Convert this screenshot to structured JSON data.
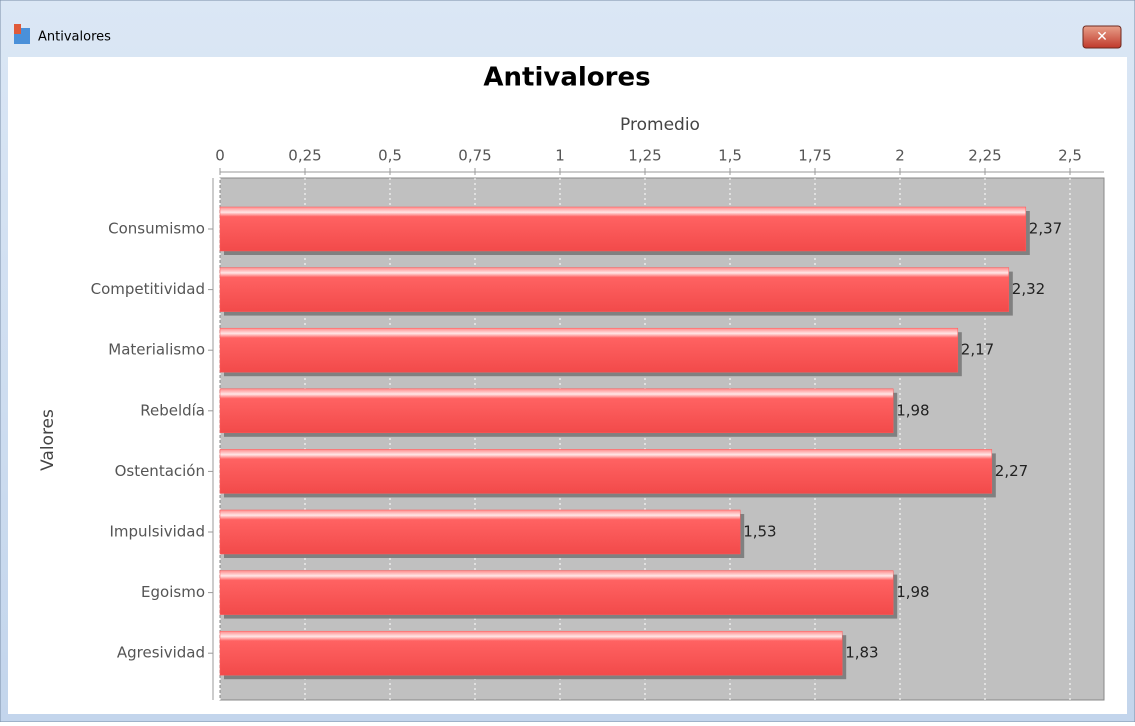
{
  "window": {
    "title": "Antivalores"
  },
  "chart_data": {
    "type": "bar",
    "orientation": "horizontal",
    "title": "Antivalores",
    "x_label": "Promedio",
    "y_label": "Valores",
    "categories": [
      "Consumismo",
      "Competitividad",
      "Materialismo",
      "Rebeldía",
      "Ostentación",
      "Impulsividad",
      "Egoismo",
      "Agresividad"
    ],
    "values": [
      2.37,
      2.32,
      2.17,
      1.98,
      2.27,
      1.53,
      1.98,
      1.83
    ],
    "value_labels": [
      "2,37",
      "2,32",
      "2,17",
      "1,98",
      "2,27",
      "1,53",
      "1,98",
      "1,83"
    ],
    "color": "#ff5a5a",
    "xlim": [
      0,
      2.6
    ],
    "xticks": [
      0,
      {
        "value": 0.25,
        "label": "0,25"
      },
      {
        "value": 0.5,
        "label": "0,5"
      },
      {
        "value": 0.75,
        "label": "0,75"
      },
      1,
      {
        "value": 1.25,
        "label": "1,25"
      },
      {
        "value": 1.5,
        "label": "1,5"
      },
      {
        "value": 1.75,
        "label": "1,75"
      },
      2,
      {
        "value": 2.25,
        "label": "2,25"
      },
      {
        "value": 2.5,
        "label": "2,5"
      }
    ],
    "grid": true
  }
}
